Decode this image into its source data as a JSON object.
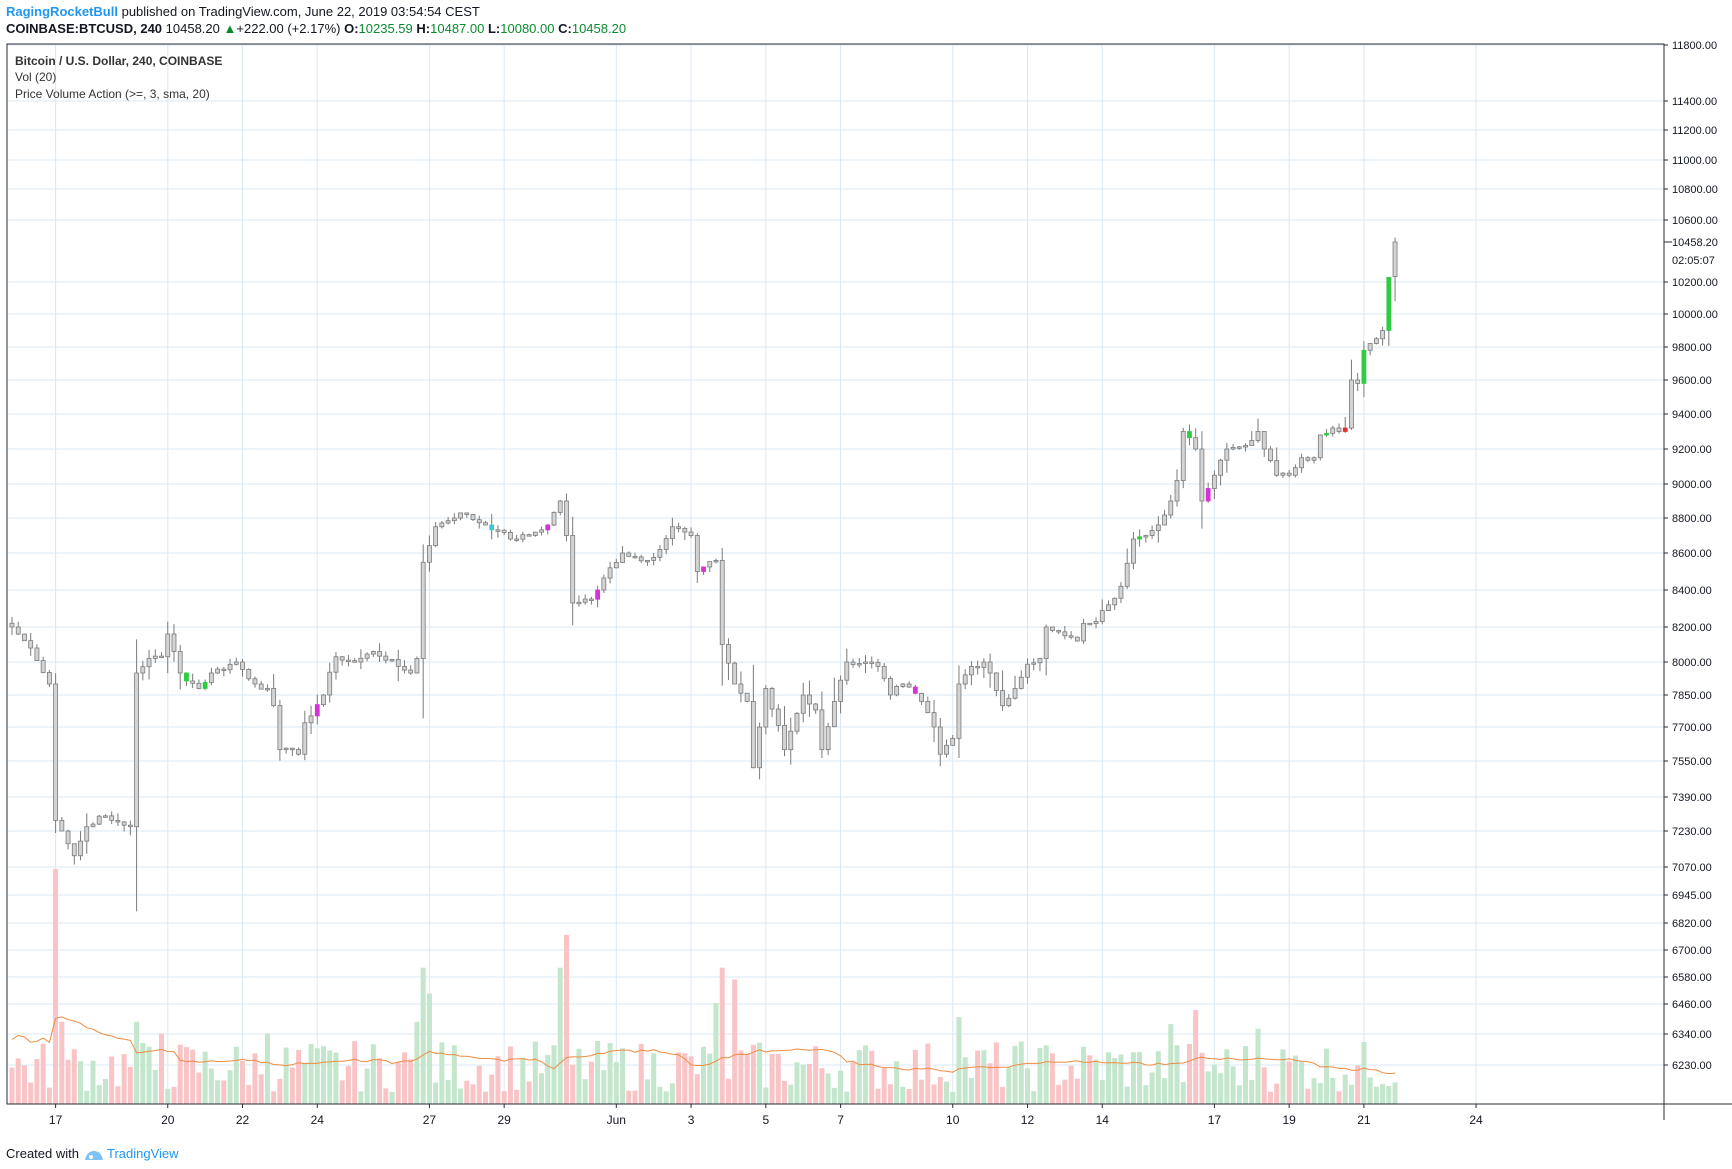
{
  "header": {
    "author": "RagingRocketBull",
    "published": "published on TradingView.com, June 22, 2019 03:54:54 CEST",
    "symbol": "COINBASE:BTCUSD, 240",
    "last": "10458.20",
    "change_arrow": "▲",
    "change": "+222.00 (+2.17%)",
    "o_label": "O:",
    "o_value": "10235.59",
    "h_label": "H:",
    "h_value": "10487.00",
    "l_label": "L:",
    "l_value": "10080.00",
    "c_label": "C:",
    "c_value": "10458.20"
  },
  "legend": {
    "line1": "Bitcoin / U.S. Dollar, 240, COINBASE",
    "line2": "Vol (20)",
    "line3": "Price Volume Action (>=, 3, sma, 20)"
  },
  "footer": {
    "prefix": "Created with",
    "brand": "TradingView"
  },
  "colors": {
    "candle_neutral": "#d4d4d4",
    "candle_border": "#7a7a7a",
    "candle_green": "#2ecc40",
    "candle_magenta": "#d633d6",
    "candle_cyan": "#40c8d8",
    "candle_red": "#e03030",
    "vol_up": "#c3e6cc",
    "vol_down": "#f8c4c6",
    "vol_ma": "#f08c40",
    "grid": "#d9e8f5",
    "price_tag_bg": "#ffffff"
  },
  "chart_data": {
    "type": "candlestick",
    "symbol": "COINBASE:BTCUSD",
    "interval": "240",
    "y_ticks": [
      "11800.00",
      "11400.00",
      "11200.00",
      "11000.00",
      "10800.00",
      "10600.00",
      "10200.00",
      "10000.00",
      "9800.00",
      "9600.00",
      "9400.00",
      "9200.00",
      "9000.00",
      "8800.00",
      "8600.00",
      "8400.00",
      "8200.00",
      "8000.00",
      "7850.00",
      "7700.00",
      "7550.00",
      "7390.00",
      "7230.00",
      "7070.00",
      "6945.00",
      "6820.00",
      "6700.00",
      "6580.00",
      "6460.00",
      "6340.00",
      "6230.00"
    ],
    "y_tick_values": [
      11800,
      11400,
      11200,
      11000,
      10800,
      10600,
      10200,
      10000,
      9800,
      9600,
      9400,
      9200,
      9000,
      8800,
      8600,
      8400,
      8200,
      8000,
      7850,
      7700,
      7550,
      7390,
      7230,
      7070,
      6945,
      6820,
      6700,
      6580,
      6460,
      6340,
      6230
    ],
    "last_price_label": "10458.20",
    "last_price": 10458.2,
    "countdown": "02:05:07",
    "x_ticks": [
      {
        "label": "17",
        "index": 7
      },
      {
        "label": "20",
        "index": 25
      },
      {
        "label": "22",
        "index": 37
      },
      {
        "label": "24",
        "index": 49
      },
      {
        "label": "27",
        "index": 67
      },
      {
        "label": "29",
        "index": 79
      },
      {
        "label": "Jun",
        "index": 97
      },
      {
        "label": "3",
        "index": 109
      },
      {
        "label": "5",
        "index": 121
      },
      {
        "label": "7",
        "index": 133
      },
      {
        "label": "10",
        "index": 151
      },
      {
        "label": "12",
        "index": 163
      },
      {
        "label": "14",
        "index": 175
      },
      {
        "label": "17",
        "index": 193
      },
      {
        "label": "19",
        "index": 205
      },
      {
        "label": "21",
        "index": 217
      },
      {
        "label": "24",
        "index": 235
      }
    ],
    "anchors": [
      [
        0,
        8200
      ],
      [
        3,
        8080
      ],
      [
        6,
        7900
      ],
      [
        7,
        7280
      ],
      [
        8,
        7230
      ],
      [
        10,
        7120
      ],
      [
        12,
        7250
      ],
      [
        14,
        7300
      ],
      [
        16,
        7280
      ],
      [
        19,
        7250
      ],
      [
        20,
        7950
      ],
      [
        22,
        8020
      ],
      [
        24,
        8030
      ],
      [
        25,
        8160
      ],
      [
        27,
        7950
      ],
      [
        30,
        7880
      ],
      [
        32,
        7950
      ],
      [
        36,
        8000
      ],
      [
        39,
        7900
      ],
      [
        41,
        7880
      ],
      [
        42,
        7800
      ],
      [
        43,
        7600
      ],
      [
        46,
        7580
      ],
      [
        47,
        7720
      ],
      [
        50,
        7850
      ],
      [
        52,
        8030
      ],
      [
        55,
        8000
      ],
      [
        58,
        8060
      ],
      [
        62,
        7980
      ],
      [
        64,
        7950
      ],
      [
        65,
        8020
      ],
      [
        66,
        8550
      ],
      [
        68,
        8750
      ],
      [
        72,
        8830
      ],
      [
        76,
        8760
      ],
      [
        78,
        8730
      ],
      [
        80,
        8680
      ],
      [
        83,
        8700
      ],
      [
        86,
        8760
      ],
      [
        88,
        8900
      ],
      [
        89,
        8700
      ],
      [
        90,
        8330
      ],
      [
        93,
        8350
      ],
      [
        94,
        8400
      ],
      [
        96,
        8520
      ],
      [
        98,
        8600
      ],
      [
        102,
        8560
      ],
      [
        104,
        8620
      ],
      [
        106,
        8750
      ],
      [
        108,
        8720
      ],
      [
        109,
        8700
      ],
      [
        110,
        8500
      ],
      [
        113,
        8560
      ],
      [
        114,
        8100
      ],
      [
        116,
        7900
      ],
      [
        118,
        7820
      ],
      [
        119,
        7520
      ],
      [
        121,
        7880
      ],
      [
        124,
        7600
      ],
      [
        127,
        7850
      ],
      [
        129,
        7780
      ],
      [
        130,
        7600
      ],
      [
        132,
        7820
      ],
      [
        134,
        8000
      ],
      [
        137,
        8000
      ],
      [
        139,
        7980
      ],
      [
        141,
        7850
      ],
      [
        143,
        7900
      ],
      [
        146,
        7820
      ],
      [
        148,
        7700
      ],
      [
        149,
        7580
      ],
      [
        151,
        7650
      ],
      [
        152,
        7900
      ],
      [
        154,
        7980
      ],
      [
        156,
        8000
      ],
      [
        157,
        7950
      ],
      [
        158,
        7870
      ],
      [
        159,
        7800
      ],
      [
        161,
        7880
      ],
      [
        163,
        7990
      ],
      [
        165,
        8020
      ],
      [
        166,
        8200
      ],
      [
        169,
        8150
      ],
      [
        171,
        8120
      ],
      [
        172,
        8220
      ],
      [
        174,
        8230
      ],
      [
        176,
        8320
      ],
      [
        178,
        8420
      ],
      [
        180,
        8680
      ],
      [
        182,
        8700
      ],
      [
        184,
        8760
      ],
      [
        186,
        8900
      ],
      [
        187,
        9020
      ],
      [
        188,
        9300
      ],
      [
        190,
        9200
      ],
      [
        191,
        8900
      ],
      [
        193,
        9050
      ],
      [
        195,
        9200
      ],
      [
        198,
        9220
      ],
      [
        200,
        9300
      ],
      [
        201,
        9200
      ],
      [
        203,
        9050
      ],
      [
        205,
        9050
      ],
      [
        207,
        9150
      ],
      [
        209,
        9150
      ],
      [
        210,
        9280
      ],
      [
        212,
        9320
      ],
      [
        213,
        9300
      ],
      [
        214,
        9320
      ],
      [
        215,
        9600
      ],
      [
        216,
        9580
      ],
      [
        217,
        9780
      ],
      [
        219,
        9850
      ],
      [
        220,
        9900
      ],
      [
        221,
        10230
      ],
      [
        222,
        10458.2
      ]
    ],
    "special_candles": [
      {
        "index": 28,
        "color": "green"
      },
      {
        "index": 31,
        "color": "green"
      },
      {
        "index": 49,
        "color": "magenta"
      },
      {
        "index": 77,
        "color": "cyan"
      },
      {
        "index": 86,
        "color": "magenta"
      },
      {
        "index": 94,
        "color": "magenta"
      },
      {
        "index": 111,
        "color": "magenta"
      },
      {
        "index": 145,
        "color": "magenta"
      },
      {
        "index": 181,
        "color": "green"
      },
      {
        "index": 189,
        "color": "green"
      },
      {
        "index": 192,
        "color": "magenta"
      },
      {
        "index": 211,
        "color": "green"
      },
      {
        "index": 214,
        "color": "red"
      },
      {
        "index": 217,
        "color": "green"
      },
      {
        "index": 221,
        "color": "green"
      },
      {
        "index": 222,
        "color": "neutral"
      }
    ],
    "volume_peaks": [
      {
        "index": 7,
        "value": 100
      },
      {
        "index": 8,
        "value": 35
      },
      {
        "index": 20,
        "value": 35
      },
      {
        "index": 24,
        "value": 30
      },
      {
        "index": 41,
        "value": 30
      },
      {
        "index": 65,
        "value": 35
      },
      {
        "index": 66,
        "value": 58
      },
      {
        "index": 67,
        "value": 47
      },
      {
        "index": 88,
        "value": 58
      },
      {
        "index": 89,
        "value": 72
      },
      {
        "index": 113,
        "value": 43
      },
      {
        "index": 114,
        "value": 58
      },
      {
        "index": 116,
        "value": 53
      },
      {
        "index": 152,
        "value": 37
      },
      {
        "index": 186,
        "value": 34
      },
      {
        "index": 190,
        "value": 40
      },
      {
        "index": 200,
        "value": 32
      }
    ],
    "grid": true
  }
}
